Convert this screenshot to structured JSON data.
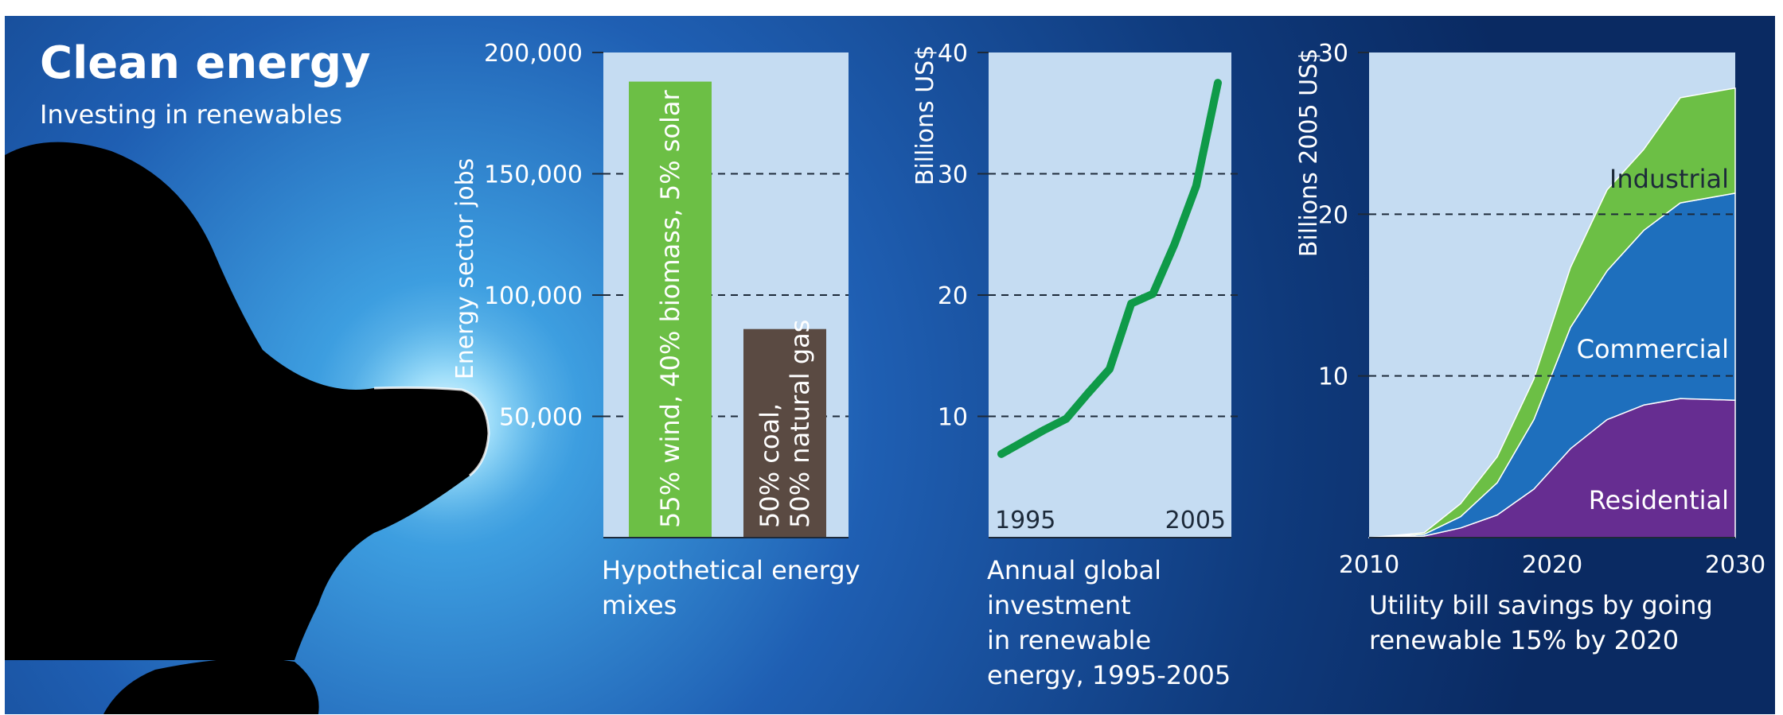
{
  "header": {
    "title": "Clean energy",
    "subtitle": "Investing in renewables"
  },
  "colors": {
    "background_dark": "#0a2a66",
    "background_glow": "#6fc6f0",
    "plot_bg": "#c5dcf2",
    "green": "#6cbf45",
    "line_green": "#0f9a48",
    "brown": "#5a4a42",
    "commercial_blue": "#1e6fbd",
    "residential_purple": "#662d91"
  },
  "chart_data": [
    {
      "type": "bar",
      "ylabel": "Energy sector jobs",
      "xlabel": "Hypothetical energy mixes",
      "ylim": [
        0,
        200000
      ],
      "yticks": [
        "50,000",
        "100,000",
        "150,000",
        "200,000"
      ],
      "grid": "dashed",
      "categories": [
        "55% wind, 40% biomass, 5% solar",
        "50% coal, 50% natural gas"
      ],
      "category_lines": [
        [
          "55% wind, 40% biomass, 5% solar"
        ],
        [
          "50% coal,",
          "50% natural gas"
        ]
      ],
      "values": [
        188000,
        86000
      ]
    },
    {
      "type": "line",
      "ylabel": "Billions US$",
      "xlabel": "Annual global investment in renewable energy, 1995-2005",
      "xlabel_lines": [
        "Annual global",
        "investment",
        "in renewable",
        "energy, 1995-2005"
      ],
      "ylim": [
        0,
        40
      ],
      "yticks": [
        "10",
        "20",
        "30",
        "40"
      ],
      "xticks": [
        "1995",
        "2005"
      ],
      "grid": "dashed",
      "x": [
        1995,
        1996,
        1997,
        1998,
        1999,
        2000,
        2001,
        2002,
        2003,
        2004,
        2005
      ],
      "values": [
        6.9,
        7.9,
        8.9,
        9.8,
        11.9,
        13.9,
        19.3,
        20.1,
        24.2,
        29.0,
        37.5
      ]
    },
    {
      "type": "area",
      "ylabel": "Billions  2005 US$",
      "xlabel": "Utility bill savings by going renewable 15% by 2020",
      "xlabel_lines": [
        "Utility bill savings by going",
        "renewable 15% by 2020"
      ],
      "ylim": [
        0,
        30
      ],
      "xlim": [
        2010,
        2030
      ],
      "yticks": [
        "10",
        "20",
        "30"
      ],
      "xticks": [
        "2010",
        "2020",
        "2030"
      ],
      "grid": "dashed",
      "stacked": true,
      "x": [
        2010,
        2013,
        2015,
        2017,
        2019,
        2021,
        2023,
        2025,
        2027,
        2030
      ],
      "series": [
        {
          "name": "Residential",
          "values": [
            0,
            0.1,
            0.6,
            1.4,
            3.0,
            5.5,
            7.3,
            8.2,
            8.6,
            8.5
          ]
        },
        {
          "name": "Commercial",
          "values": [
            0,
            0.1,
            0.7,
            2.0,
            4.3,
            7.5,
            9.2,
            10.8,
            12.1,
            12.8
          ]
        },
        {
          "name": "Industrial",
          "values": [
            0,
            0.1,
            0.8,
            1.6,
            2.5,
            3.7,
            5.0,
            5.0,
            6.5,
            6.5
          ]
        }
      ]
    }
  ]
}
